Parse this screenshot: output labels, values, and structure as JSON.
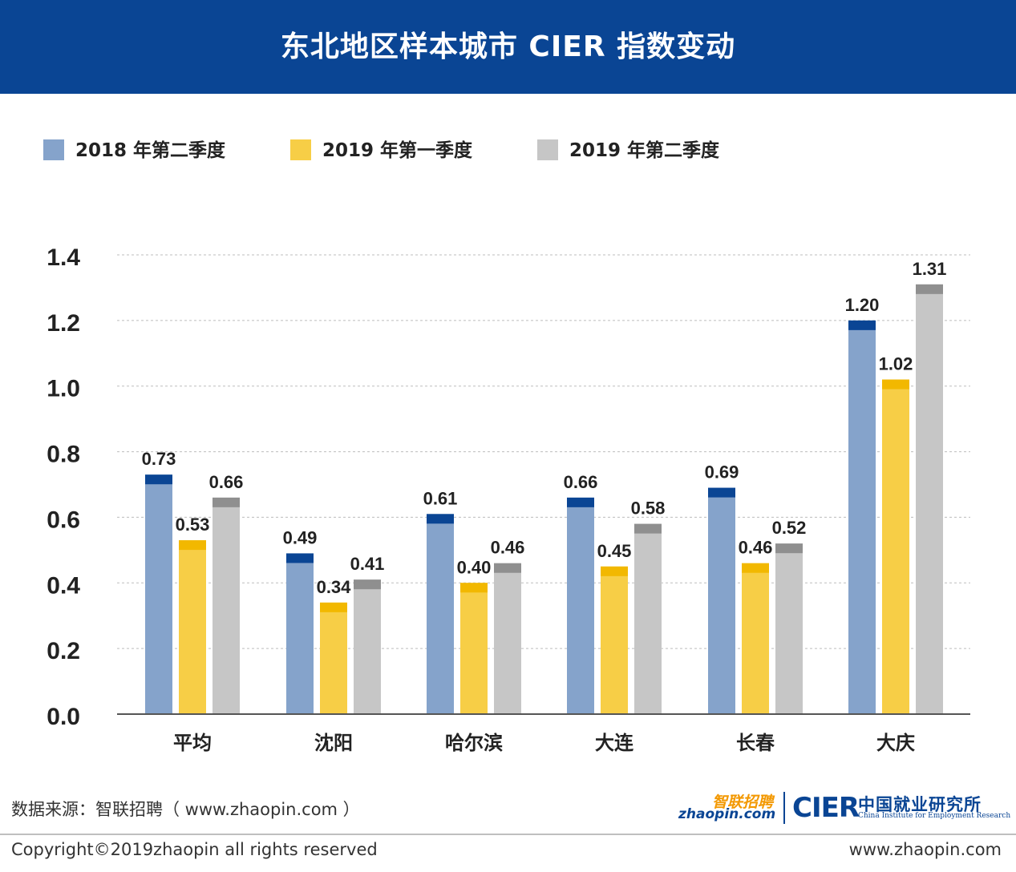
{
  "header": {
    "title": "东北地区样本城市 CIER 指数变动"
  },
  "legend": [
    {
      "label": "2018 年第二季度",
      "color": "#85a3cb"
    },
    {
      "label": "2019 年第一季度",
      "color": "#f7ce46"
    },
    {
      "label": "2019 年第二季度",
      "color": "#c6c6c6"
    }
  ],
  "chart_data": {
    "type": "bar",
    "title": "东北地区样本城市 CIER 指数变动",
    "categories": [
      "平均",
      "沈阳",
      "哈尔滨",
      "大连",
      "长春",
      "大庆"
    ],
    "series": [
      {
        "name": "2018 年第二季度",
        "values": [
          0.73,
          0.49,
          0.61,
          0.66,
          0.69,
          1.2
        ],
        "labels": [
          "0.73",
          "0.49",
          "0.61",
          "0.66",
          "0.69",
          "1.20"
        ],
        "color": "#85a3cb",
        "cap_color": "#0a4594"
      },
      {
        "name": "2019 年第一季度",
        "values": [
          0.53,
          0.34,
          0.4,
          0.45,
          0.46,
          1.02
        ],
        "labels": [
          "0.53",
          "0.34",
          "0.40",
          "0.45",
          "0.46",
          "1.02"
        ],
        "color": "#f7ce46",
        "cap_color": "#f2b800"
      },
      {
        "name": "2019 年第二季度",
        "values": [
          0.66,
          0.41,
          0.46,
          0.58,
          0.52,
          1.31
        ],
        "labels": [
          "0.66",
          "0.41",
          "0.46",
          "0.58",
          "0.52",
          "1.31"
        ],
        "color": "#c6c6c6",
        "cap_color": "#8f8f8f"
      }
    ],
    "ylim": [
      0,
      1.4
    ],
    "yticks": [
      0.0,
      0.2,
      0.4,
      0.6,
      0.8,
      1.0,
      1.2,
      1.4
    ],
    "ytick_labels": [
      "0.0",
      "0.2",
      "0.4",
      "0.6",
      "0.8",
      "1.0",
      "1.2",
      "1.4"
    ],
    "grid": true,
    "legend_position": "top-left"
  },
  "footer": {
    "source": "数据来源：智联招聘（ www.zhaopin.com ）",
    "copyright": "Copyright©2019zhaopin all rights reserved",
    "site": "www.zhaopin.com"
  },
  "logos": {
    "zhaopin_cn": "智联招聘",
    "zhaopin_domain": "zhaopin.com",
    "cier_mark": "CIER",
    "cier_cn": "中国就业研究所",
    "cier_en": "China Institute for Employment Research"
  }
}
